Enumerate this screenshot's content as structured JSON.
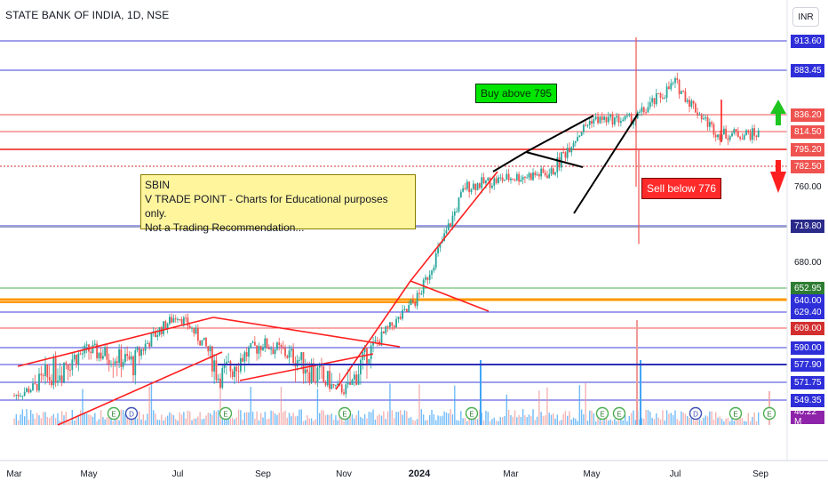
{
  "header": {
    "title": "STATE BANK OF INDIA, 1D, NSE",
    "currency_button": "INR"
  },
  "colors": {
    "up": "#26a69a",
    "down": "#ef5350",
    "blue_line": "#3f3fd9",
    "red_line": "#ef5350",
    "green_line": "#4caf50",
    "orange_line": "#ff9800",
    "trend_red": "#ff1f1f",
    "trend_black": "#000000",
    "volume_blue": "#42a5f5",
    "volume_red": "#ef9a9a"
  },
  "annotations": {
    "note_lines": [
      "SBIN",
      "V TRADE POINT - Charts for Educational purposes only.",
      "Not a Trading Recommendation..."
    ],
    "buy_label": "Buy above 795",
    "sell_label": "Sell below 776"
  },
  "axis": {
    "price_labels": [
      "913.60",
      "883.45",
      "836.20",
      "814.50",
      "795.20",
      "782.50",
      "760.00",
      "719.80",
      "680.00",
      "652.95",
      "640.00",
      "629.40",
      "609.00",
      "590.00",
      "577.90",
      "571.75",
      "549.35",
      "40.22 M"
    ],
    "time_labels": [
      "Mar",
      "May",
      "Jul",
      "Sep",
      "Nov",
      "2024",
      "Mar",
      "May",
      "Jul",
      "Sep"
    ]
  },
  "chart_data": {
    "type": "candlestick",
    "title": "STATE BANK OF INDIA, 1D, NSE",
    "currency": "INR",
    "x_range": [
      "2023-03",
      "2024-09"
    ],
    "y_range": [
      540,
      930
    ],
    "horizontal_levels": [
      {
        "value": 913.6,
        "color": "blue"
      },
      {
        "value": 883.45,
        "color": "blue"
      },
      {
        "value": 836.2,
        "color": "red"
      },
      {
        "value": 814.5,
        "color": "red"
      },
      {
        "value": 795.2,
        "color": "red"
      },
      {
        "value": 782.5,
        "color": "red-dotted"
      },
      {
        "value": 719.8,
        "color": "blue"
      },
      {
        "value": 652.95,
        "color": "green"
      },
      {
        "value": 640.0,
        "color": "orange"
      },
      {
        "value": 629.4,
        "color": "blue"
      },
      {
        "value": 609.0,
        "color": "red"
      },
      {
        "value": 590.0,
        "color": "blue"
      },
      {
        "value": 577.9,
        "color": "blue"
      },
      {
        "value": 571.75,
        "color": "blue"
      },
      {
        "value": 549.35,
        "color": "blue"
      }
    ],
    "approx_close_path": [
      [
        "2023-03",
        555
      ],
      [
        "2023-04",
        575
      ],
      [
        "2023-05",
        588
      ],
      [
        "2023-06",
        580
      ],
      [
        "2023-07",
        626
      ],
      [
        "2023-08",
        572
      ],
      [
        "2023-09",
        594
      ],
      [
        "2023-10",
        580
      ],
      [
        "2023-11",
        562
      ],
      [
        "2023-12",
        600
      ],
      [
        "2024-01",
        645
      ],
      [
        "2024-02",
        760
      ],
      [
        "2024-03",
        770
      ],
      [
        "2024-04",
        775
      ],
      [
        "2024-05",
        830
      ],
      [
        "2024-06",
        830
      ],
      [
        "2024-07",
        870
      ],
      [
        "2024-08",
        812
      ],
      [
        "2024-09",
        812
      ]
    ],
    "volume_last": "40.22 M",
    "event_markers": [
      "E",
      "D",
      "E",
      "E",
      "E",
      "E",
      "E",
      "D",
      "E",
      "E"
    ],
    "grid": false,
    "legend": "none"
  }
}
